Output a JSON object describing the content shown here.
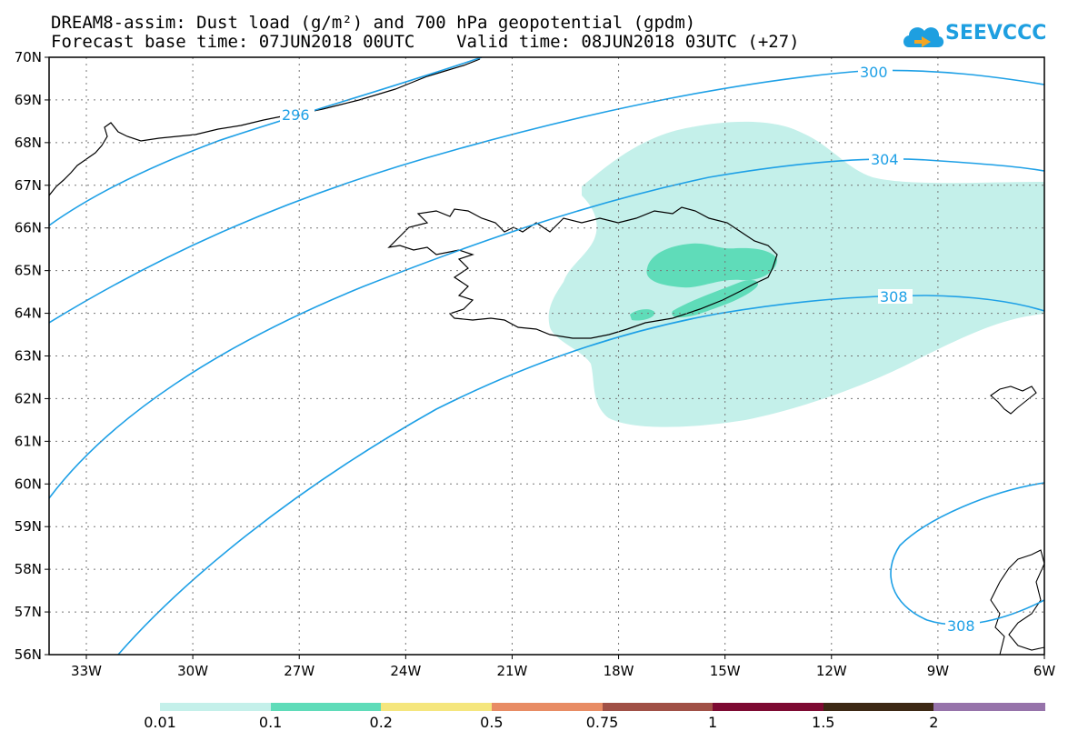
{
  "title": {
    "line1": "DREAM8-assim: Dust load (g/m²) and 700 hPa geopotential (gpdm)",
    "line2": "Forecast base time: 07JUN2018 00UTC    Valid time: 08JUN2018 03UTC (+27)"
  },
  "logo": {
    "text": "SEEVCCC",
    "icon": "cloud-icon",
    "color": "#1e9fe0"
  },
  "map": {
    "lat_labels": [
      "70N",
      "69N",
      "68N",
      "67N",
      "66N",
      "65N",
      "64N",
      "63N",
      "62N",
      "61N",
      "60N",
      "59N",
      "58N",
      "57N",
      "56N"
    ],
    "lon_labels": [
      "33W",
      "30W",
      "27W",
      "24W",
      "21W",
      "18W",
      "15W",
      "12W",
      "9W",
      "6W"
    ],
    "contour_labels": [
      "296",
      "300",
      "304",
      "308",
      "308"
    ],
    "contour_color": "#1ea0e6"
  },
  "colorbar": {
    "colors": [
      "#c4f0ea",
      "#5fdcb9",
      "#f5e67d",
      "#e88c64",
      "#a05046",
      "#7d0a32",
      "#3c2814",
      "#9673aa"
    ],
    "labels": [
      "0.01",
      "0.1",
      "0.2",
      "0.5",
      "0.75",
      "1",
      "1.5",
      "2"
    ]
  }
}
